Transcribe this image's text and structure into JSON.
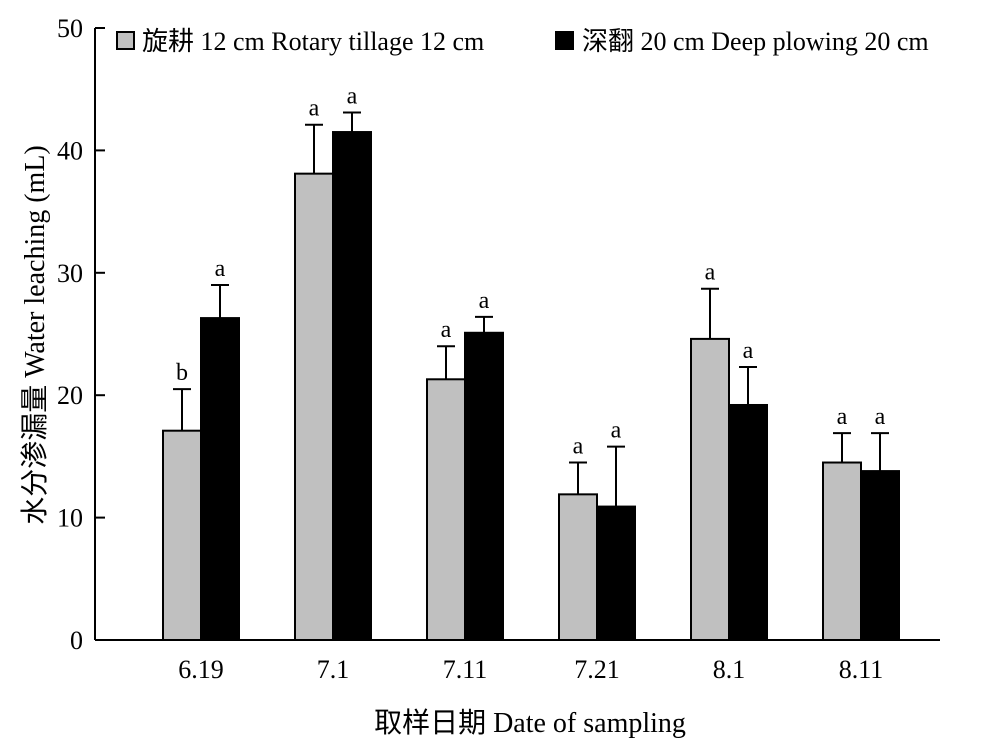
{
  "chart_data": {
    "type": "bar",
    "categories": [
      "6.19",
      "7.1",
      "7.11",
      "7.21",
      "8.1",
      "8.11"
    ],
    "series": [
      {
        "name": "旋耕 12 cm Rotary tillage 12 cm",
        "color": "#c0c0c0",
        "values": [
          17.1,
          38.1,
          21.3,
          11.9,
          24.6,
          14.5
        ],
        "errors": [
          3.4,
          4.0,
          2.7,
          2.6,
          4.1,
          2.4
        ],
        "labels": [
          "b",
          "a",
          "a",
          "a",
          "a",
          "a"
        ]
      },
      {
        "name": "深翻 20 cm Deep plowing 20 cm",
        "color": "#000000",
        "values": [
          26.3,
          41.5,
          25.1,
          10.9,
          19.2,
          13.8
        ],
        "errors": [
          2.7,
          1.6,
          1.3,
          4.9,
          3.1,
          3.1
        ],
        "labels": [
          "a",
          "a",
          "a",
          "a",
          "a",
          "a"
        ]
      }
    ],
    "xlabel": "取样日期 Date of sampling",
    "ylabel": "水分渗漏量 Water leaching (mL)",
    "ylim": [
      0,
      50
    ],
    "yticks": [
      0,
      10,
      20,
      30,
      40,
      50
    ],
    "grid": false,
    "legend_position": "top"
  }
}
